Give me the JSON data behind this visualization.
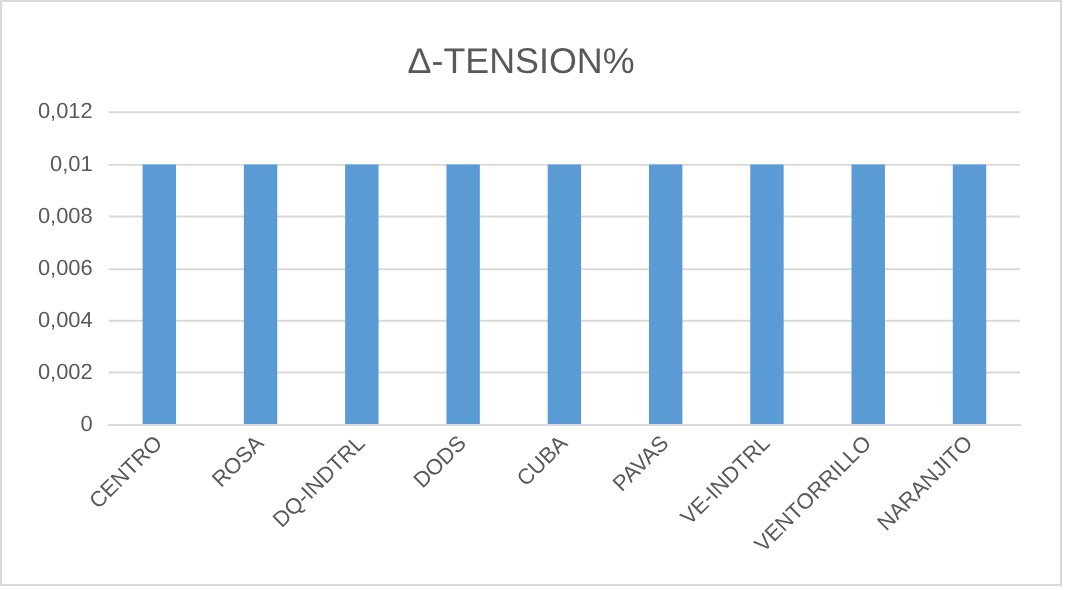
{
  "chart_data": {
    "type": "bar",
    "title": "Δ-TENSION%",
    "categories": [
      "CENTRO",
      "ROSA",
      "DQ-INDTRL",
      "DODS",
      "CUBA",
      "PAVAS",
      "VE-INDTRL",
      "VENTORRILLO",
      "NARANJITO"
    ],
    "values": [
      0.01,
      0.01,
      0.01,
      0.01,
      0.01,
      0.01,
      0.01,
      0.01,
      0.01
    ],
    "color": "#5b9bd5",
    "ylim": [
      0,
      0.012
    ],
    "yticks": [
      0,
      {
        "value": 0.002,
        "label": "0,002"
      },
      {
        "value": 0.004,
        "label": "0,004"
      },
      {
        "value": 0.006,
        "label": "0,006"
      },
      {
        "value": 0.008,
        "label": "0,008"
      },
      {
        "value": 0.01,
        "label": "0,01"
      },
      {
        "value": 0.012,
        "label": "0,012"
      }
    ],
    "grid": "y"
  }
}
